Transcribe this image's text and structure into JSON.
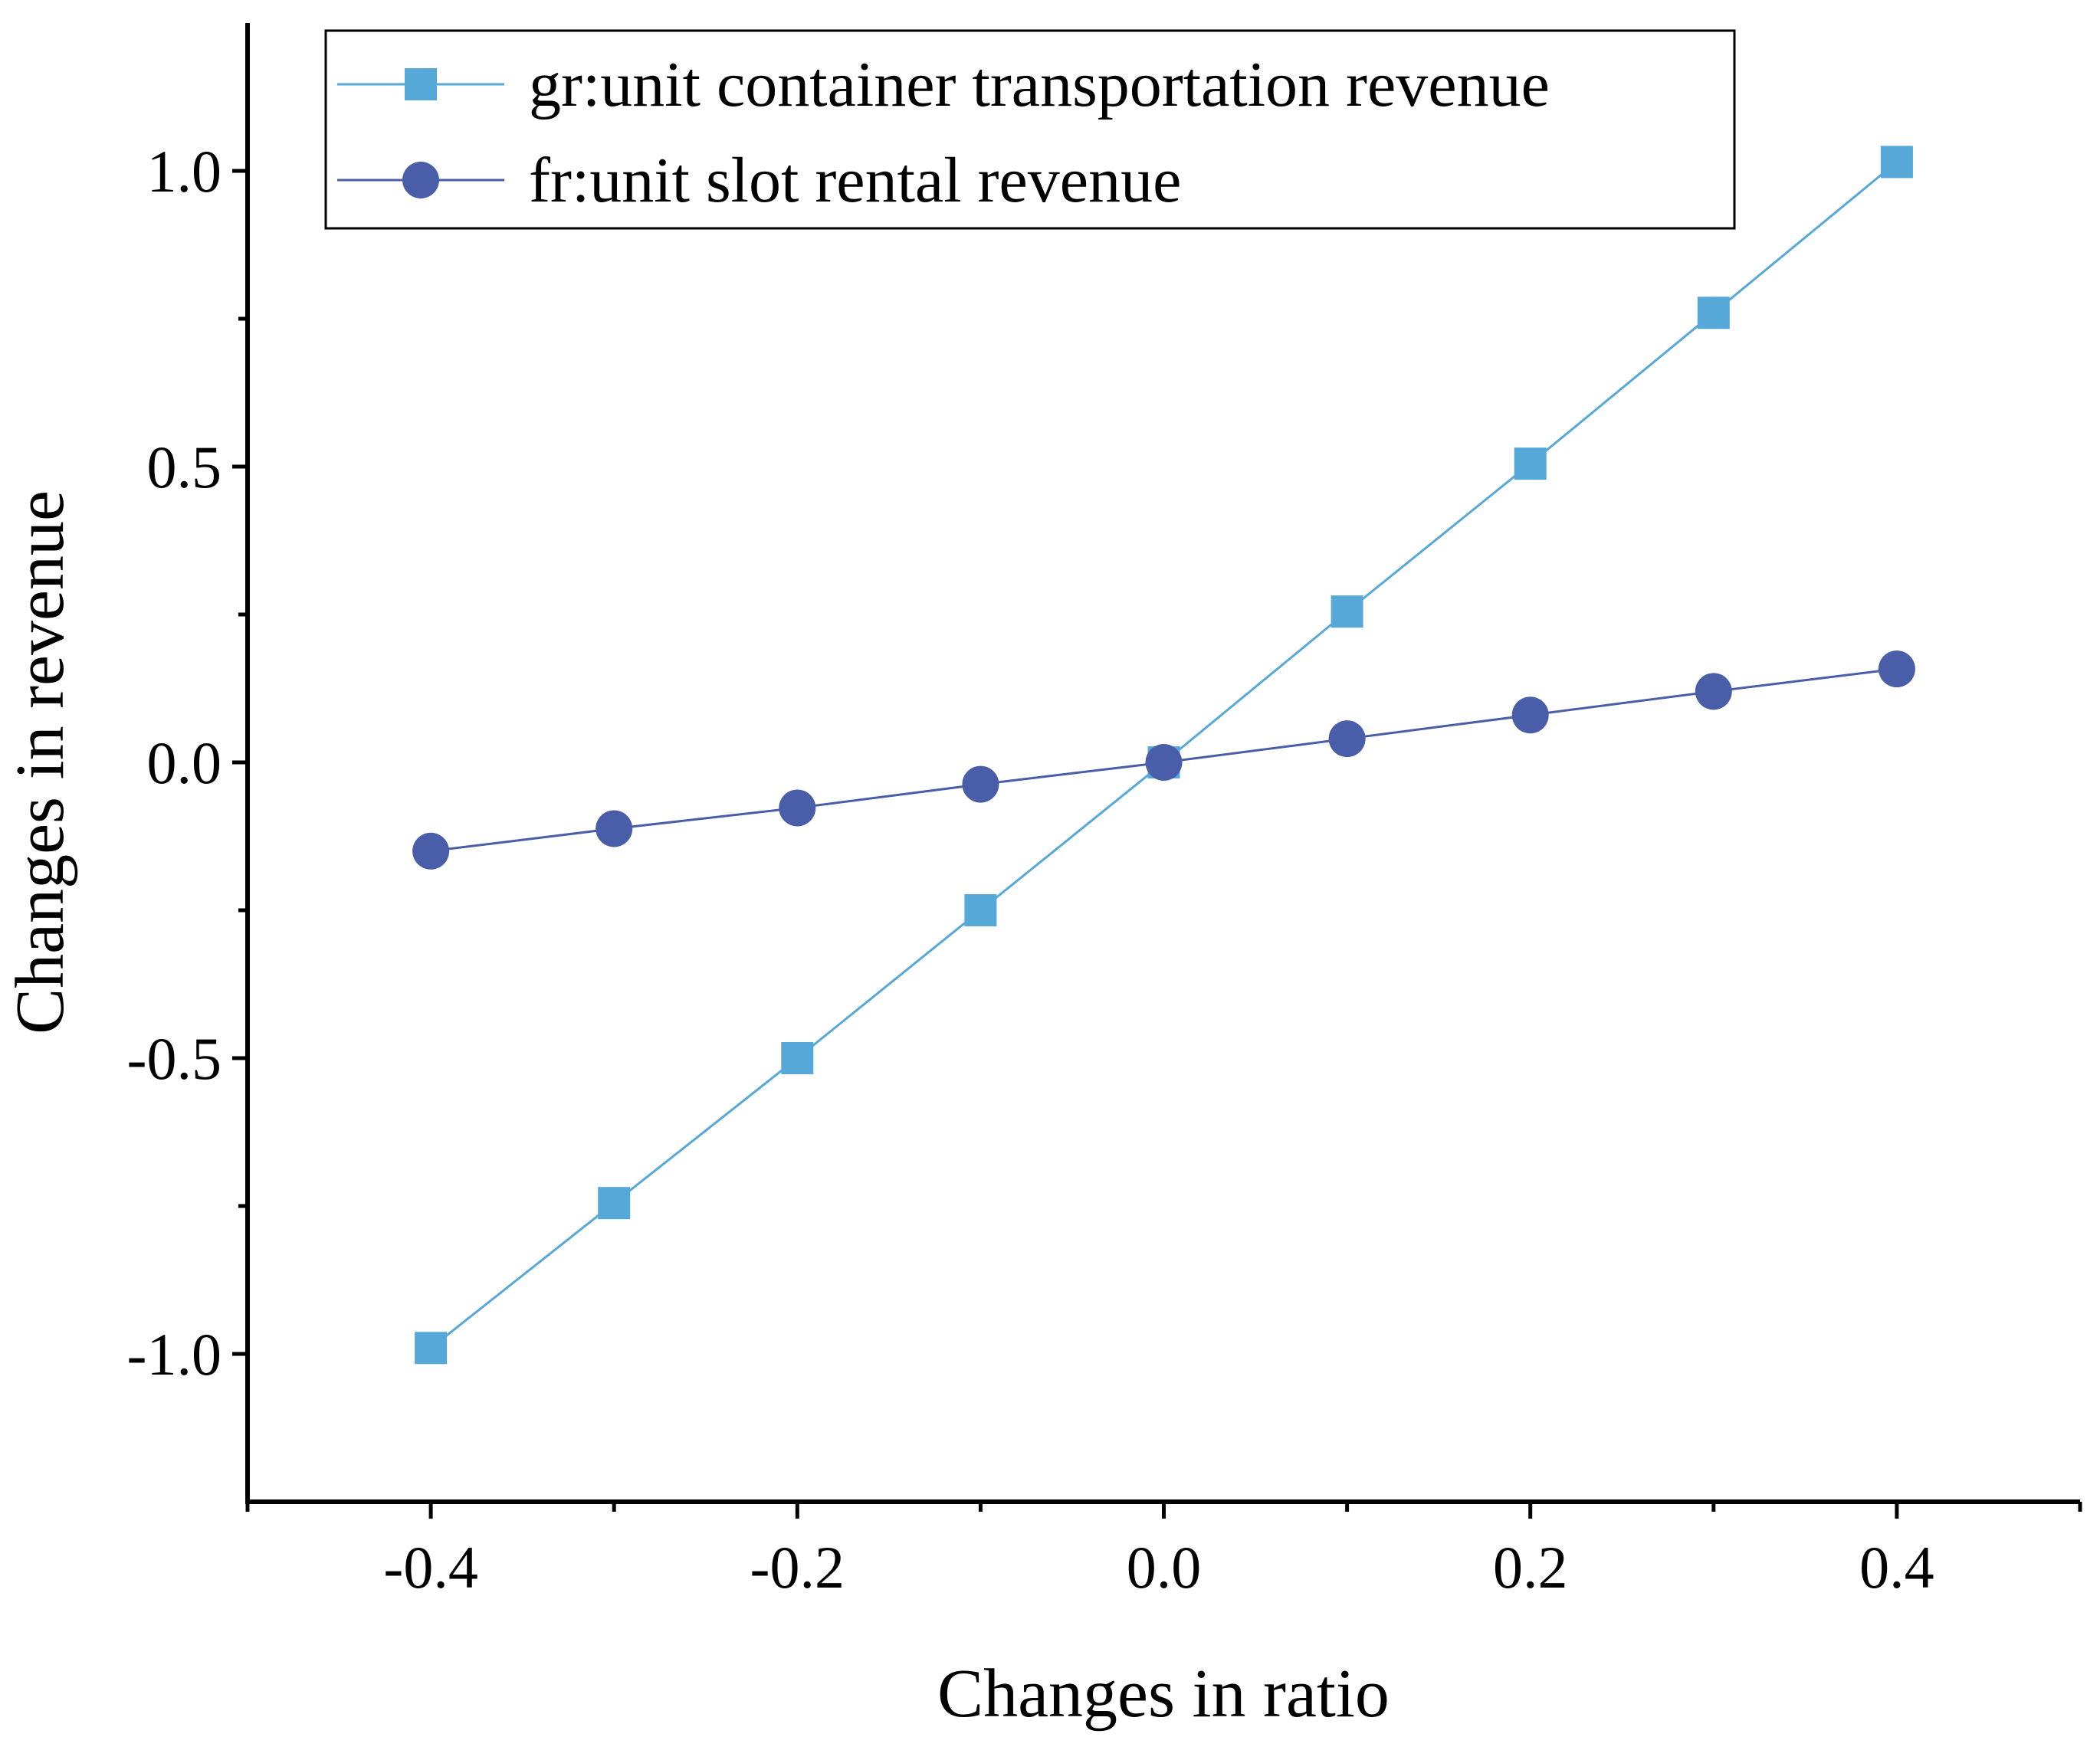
{
  "chart_data": {
    "type": "line",
    "title": "",
    "xlabel": "Changes in ratio",
    "ylabel": "Changes in revenue",
    "xlim": [
      -0.5,
      0.5
    ],
    "ylim": [
      -1.25,
      1.25
    ],
    "x_ticks": [
      -0.4,
      -0.2,
      0.0,
      0.2,
      0.4
    ],
    "x_tick_labels": [
      "-0.4",
      "-0.2",
      "0.0",
      "0.2",
      "0.4"
    ],
    "x_minor_ticks": [
      -0.5,
      -0.3,
      -0.1,
      0.1,
      0.3,
      0.5
    ],
    "y_ticks": [
      -1.0,
      -0.5,
      0.0,
      0.5,
      1.0
    ],
    "y_tick_labels": [
      "-1.0",
      "-0.5",
      "0.0",
      "0.5",
      "1.0"
    ],
    "y_minor_ticks": [
      -0.75,
      -0.25,
      0.25,
      0.75
    ],
    "grid": false,
    "legend_position": "top",
    "x": [
      -0.4,
      -0.3,
      -0.2,
      -0.1,
      0.0,
      0.1,
      0.2,
      0.3,
      0.4
    ],
    "series": [
      {
        "name": "gr:unit container transportation revenue",
        "marker": "square",
        "color": "#56A8D8",
        "values": [
          -0.99,
          -0.745,
          -0.5,
          -0.25,
          0.0,
          0.255,
          0.505,
          0.76,
          1.015
        ]
      },
      {
        "name": "fr:unit slot rental revenue",
        "marker": "circle",
        "color": "#4A5DA8",
        "values": [
          -0.15,
          -0.112,
          -0.077,
          -0.037,
          0.0,
          0.04,
          0.08,
          0.12,
          0.158
        ]
      }
    ]
  }
}
